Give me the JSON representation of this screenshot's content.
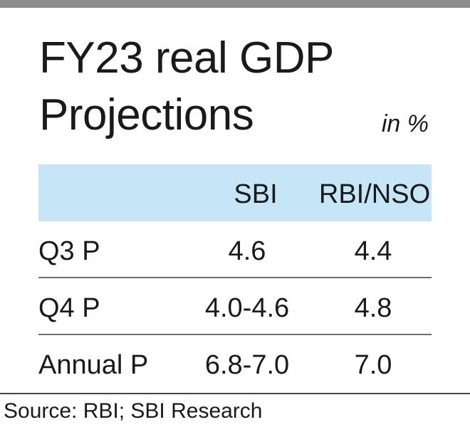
{
  "chart_data": {
    "type": "table",
    "title": "FY23 real GDP Projections",
    "unit": "in %",
    "columns": [
      "",
      "SBI",
      "RBI/NSO"
    ],
    "rows": [
      {
        "label": "Q3 P",
        "sbi": "4.6",
        "rbi_nso": "4.4"
      },
      {
        "label": "Q4 P",
        "sbi": "4.0-4.6",
        "rbi_nso": "4.8"
      },
      {
        "label": "Annual P",
        "sbi": "6.8-7.0",
        "rbi_nso": "7.0"
      }
    ],
    "source": "Source: RBI; SBI Research"
  },
  "colors": {
    "header_fill": "#c6e6f8",
    "top_bar": "#8c8c8c",
    "rule": "#6e6e6e",
    "text": "#1a1a1a"
  }
}
